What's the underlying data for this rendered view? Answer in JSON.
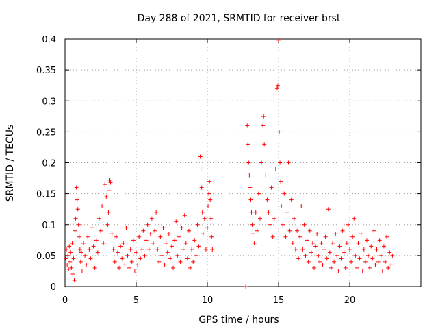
{
  "chart_data": {
    "type": "scatter",
    "title": "Day 288 of 2021, SRMTID for receiver brst",
    "xlabel": "GPS time / hours",
    "ylabel": "SRMTID / TECUs",
    "xlim": [
      0,
      25
    ],
    "ylim": [
      0,
      0.4
    ],
    "xticks": [
      0,
      5,
      10,
      15,
      20
    ],
    "xtick_labels": [
      "0",
      "5",
      "10",
      "15",
      "20"
    ],
    "yticks": [
      0,
      0.05,
      0.1,
      0.15,
      0.2,
      0.25,
      0.3,
      0.35,
      0.4
    ],
    "ytick_labels": [
      "0",
      "0.05",
      "0.1",
      "0.15",
      "0.2",
      "0.25",
      "0.3",
      "0.35",
      "0.4"
    ],
    "grid": true,
    "marker": "+",
    "color": "#ff0000",
    "series": [
      {
        "name": "SRMTID",
        "points": [
          [
            0.05,
            0.045
          ],
          [
            0.1,
            0.06
          ],
          [
            0.15,
            0.035
          ],
          [
            0.2,
            0.05
          ],
          [
            0.25,
            0.028
          ],
          [
            0.3,
            0.065
          ],
          [
            0.35,
            0.04
          ],
          [
            0.4,
            0.055
          ],
          [
            0.45,
            0.03
          ],
          [
            0.5,
            0.07
          ],
          [
            0.55,
            0.02
          ],
          [
            0.6,
            0.045
          ],
          [
            0.65,
            0.01
          ],
          [
            0.7,
            0.09
          ],
          [
            0.75,
            0.11
          ],
          [
            0.8,
            0.16
          ],
          [
            0.85,
            0.14
          ],
          [
            0.9,
            0.125
          ],
          [
            0.95,
            0.1
          ],
          [
            1.0,
            0.08
          ],
          [
            1.05,
            0.06
          ],
          [
            1.1,
            0.04
          ],
          [
            1.15,
            0.055
          ],
          [
            1.2,
            0.025
          ],
          [
            1.3,
            0.07
          ],
          [
            1.4,
            0.05
          ],
          [
            1.5,
            0.035
          ],
          [
            1.6,
            0.08
          ],
          [
            1.7,
            0.06
          ],
          [
            1.8,
            0.045
          ],
          [
            1.9,
            0.095
          ],
          [
            2.0,
            0.065
          ],
          [
            2.1,
            0.03
          ],
          [
            2.2,
            0.075
          ],
          [
            2.3,
            0.055
          ],
          [
            2.4,
            0.11
          ],
          [
            2.5,
            0.09
          ],
          [
            2.6,
            0.13
          ],
          [
            2.7,
            0.07
          ],
          [
            2.8,
            0.165
          ],
          [
            2.9,
            0.145
          ],
          [
            3.0,
            0.1
          ],
          [
            3.05,
            0.12
          ],
          [
            3.1,
            0.155
          ],
          [
            3.15,
            0.172
          ],
          [
            3.2,
            0.168
          ],
          [
            3.3,
            0.085
          ],
          [
            3.4,
            0.06
          ],
          [
            3.5,
            0.04
          ],
          [
            3.6,
            0.08
          ],
          [
            3.7,
            0.055
          ],
          [
            3.8,
            0.03
          ],
          [
            3.9,
            0.065
          ],
          [
            4.0,
            0.045
          ],
          [
            4.1,
            0.07
          ],
          [
            4.2,
            0.035
          ],
          [
            4.3,
            0.095
          ],
          [
            4.4,
            0.05
          ],
          [
            4.5,
            0.03
          ],
          [
            4.6,
            0.06
          ],
          [
            4.7,
            0.04
          ],
          [
            4.8,
            0.075
          ],
          [
            4.9,
            0.025
          ],
          [
            5.0,
            0.055
          ],
          [
            5.1,
            0.035
          ],
          [
            5.2,
            0.08
          ],
          [
            5.3,
            0.045
          ],
          [
            5.4,
            0.06
          ],
          [
            5.5,
            0.09
          ],
          [
            5.6,
            0.05
          ],
          [
            5.7,
            0.075
          ],
          [
            5.8,
            0.1
          ],
          [
            5.9,
            0.06
          ],
          [
            6.0,
            0.085
          ],
          [
            6.1,
            0.11
          ],
          [
            6.2,
            0.07
          ],
          [
            6.3,
            0.09
          ],
          [
            6.4,
            0.12
          ],
          [
            6.5,
            0.06
          ],
          [
            6.6,
            0.04
          ],
          [
            6.7,
            0.08
          ],
          [
            6.8,
            0.05
          ],
          [
            6.9,
            0.095
          ],
          [
            7.0,
            0.035
          ],
          [
            7.1,
            0.07
          ],
          [
            7.2,
            0.055
          ],
          [
            7.3,
            0.085
          ],
          [
            7.4,
            0.045
          ],
          [
            7.5,
            0.065
          ],
          [
            7.6,
            0.03
          ],
          [
            7.7,
            0.075
          ],
          [
            7.8,
            0.105
          ],
          [
            7.9,
            0.05
          ],
          [
            8.0,
            0.08
          ],
          [
            8.1,
            0.04
          ],
          [
            8.2,
            0.095
          ],
          [
            8.3,
            0.06
          ],
          [
            8.4,
            0.115
          ],
          [
            8.5,
            0.07
          ],
          [
            8.6,
            0.045
          ],
          [
            8.7,
            0.09
          ],
          [
            8.8,
            0.03
          ],
          [
            8.9,
            0.06
          ],
          [
            9.0,
            0.04
          ],
          [
            9.1,
            0.075
          ],
          [
            9.2,
            0.05
          ],
          [
            9.3,
            0.1
          ],
          [
            9.4,
            0.065
          ],
          [
            9.5,
            0.21
          ],
          [
            9.55,
            0.19
          ],
          [
            9.6,
            0.16
          ],
          [
            9.65,
            0.12
          ],
          [
            9.7,
            0.085
          ],
          [
            9.8,
            0.11
          ],
          [
            9.9,
            0.06
          ],
          [
            10.0,
            0.095
          ],
          [
            10.05,
            0.13
          ],
          [
            10.1,
            0.15
          ],
          [
            10.15,
            0.17
          ],
          [
            10.2,
            0.14
          ],
          [
            10.25,
            0.11
          ],
          [
            10.3,
            0.08
          ],
          [
            10.35,
            0.06
          ],
          [
            12.7,
            0.0
          ],
          [
            12.8,
            0.26
          ],
          [
            12.85,
            0.23
          ],
          [
            12.9,
            0.2
          ],
          [
            12.95,
            0.18
          ],
          [
            13.0,
            0.16
          ],
          [
            13.05,
            0.14
          ],
          [
            13.1,
            0.12
          ],
          [
            13.15,
            0.1
          ],
          [
            13.2,
            0.085
          ],
          [
            13.3,
            0.07
          ],
          [
            13.4,
            0.12
          ],
          [
            13.5,
            0.09
          ],
          [
            13.6,
            0.15
          ],
          [
            13.7,
            0.11
          ],
          [
            13.8,
            0.2
          ],
          [
            13.9,
            0.26
          ],
          [
            13.95,
            0.275
          ],
          [
            14.0,
            0.23
          ],
          [
            14.1,
            0.18
          ],
          [
            14.2,
            0.14
          ],
          [
            14.3,
            0.12
          ],
          [
            14.4,
            0.1
          ],
          [
            14.5,
            0.16
          ],
          [
            14.6,
            0.08
          ],
          [
            14.7,
            0.11
          ],
          [
            14.8,
            0.19
          ],
          [
            14.9,
            0.32
          ],
          [
            14.95,
            0.325
          ],
          [
            15.0,
            0.398
          ],
          [
            15.05,
            0.25
          ],
          [
            15.1,
            0.2
          ],
          [
            15.15,
            0.17
          ],
          [
            15.2,
            0.13
          ],
          [
            15.3,
            0.1
          ],
          [
            15.4,
            0.15
          ],
          [
            15.5,
            0.08
          ],
          [
            15.6,
            0.12
          ],
          [
            15.7,
            0.2
          ],
          [
            15.8,
            0.09
          ],
          [
            15.9,
            0.14
          ],
          [
            16.0,
            0.07
          ],
          [
            16.1,
            0.11
          ],
          [
            16.2,
            0.06
          ],
          [
            16.3,
            0.09
          ],
          [
            16.4,
            0.045
          ],
          [
            16.5,
            0.08
          ],
          [
            16.6,
            0.13
          ],
          [
            16.7,
            0.06
          ],
          [
            16.8,
            0.1
          ],
          [
            16.9,
            0.05
          ],
          [
            17.0,
            0.075
          ],
          [
            17.1,
            0.04
          ],
          [
            17.2,
            0.09
          ],
          [
            17.3,
            0.055
          ],
          [
            17.4,
            0.07
          ],
          [
            17.5,
            0.03
          ],
          [
            17.6,
            0.065
          ],
          [
            17.7,
            0.085
          ],
          [
            17.8,
            0.05
          ],
          [
            17.9,
            0.04
          ],
          [
            18.0,
            0.07
          ],
          [
            18.1,
            0.035
          ],
          [
            18.2,
            0.06
          ],
          [
            18.3,
            0.08
          ],
          [
            18.4,
            0.045
          ],
          [
            18.5,
            0.125
          ],
          [
            18.6,
            0.055
          ],
          [
            18.7,
            0.03
          ],
          [
            18.8,
            0.07
          ],
          [
            18.9,
            0.04
          ],
          [
            19.0,
            0.085
          ],
          [
            19.1,
            0.05
          ],
          [
            19.2,
            0.025
          ],
          [
            19.3,
            0.065
          ],
          [
            19.4,
            0.045
          ],
          [
            19.5,
            0.09
          ],
          [
            19.6,
            0.055
          ],
          [
            19.7,
            0.03
          ],
          [
            19.8,
            0.07
          ],
          [
            19.9,
            0.1
          ],
          [
            20.0,
            0.06
          ],
          [
            20.1,
            0.04
          ],
          [
            20.2,
            0.08
          ],
          [
            20.3,
            0.11
          ],
          [
            20.4,
            0.05
          ],
          [
            20.5,
            0.03
          ],
          [
            20.6,
            0.07
          ],
          [
            20.7,
            0.045
          ],
          [
            20.8,
            0.085
          ],
          [
            20.9,
            0.025
          ],
          [
            21.0,
            0.06
          ],
          [
            21.1,
            0.04
          ],
          [
            21.2,
            0.075
          ],
          [
            21.3,
            0.05
          ],
          [
            21.4,
            0.03
          ],
          [
            21.5,
            0.065
          ],
          [
            21.6,
            0.045
          ],
          [
            21.7,
            0.09
          ],
          [
            21.8,
            0.035
          ],
          [
            21.9,
            0.06
          ],
          [
            22.0,
            0.04
          ],
          [
            22.1,
            0.075
          ],
          [
            22.2,
            0.05
          ],
          [
            22.3,
            0.025
          ],
          [
            22.4,
            0.065
          ],
          [
            22.5,
            0.04
          ],
          [
            22.6,
            0.08
          ],
          [
            22.7,
            0.03
          ],
          [
            22.8,
            0.055
          ],
          [
            22.9,
            0.035
          ],
          [
            23.0,
            0.05
          ]
        ]
      }
    ]
  }
}
